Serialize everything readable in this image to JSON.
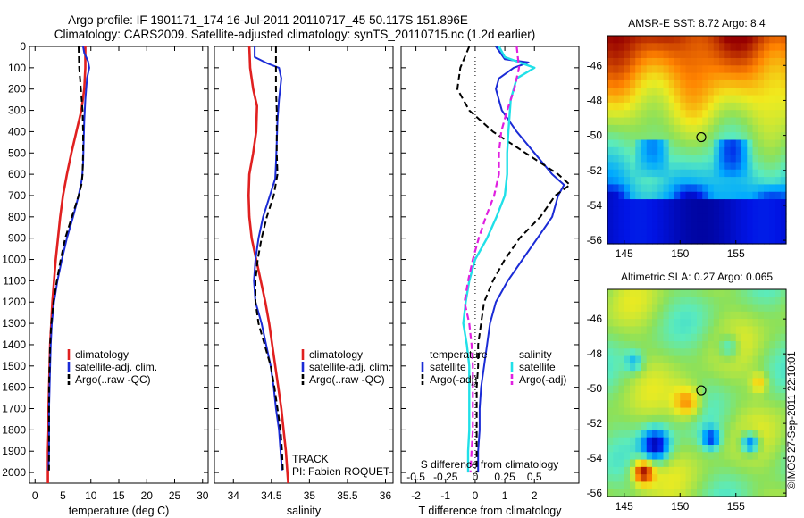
{
  "header": {
    "title_line1": "Argo profile: IF 1901171_174 16-Jul-2011 20110717_45 50.117S 151.896E",
    "title_line2": "Climatology: CARS2009. Satellite-adjusted climatology: synTS_20110715.nc (1.2d earlier)"
  },
  "colors": {
    "climatology": "#e02020",
    "satellite": "#1a2bd6",
    "argo": "#000000",
    "cyan": "#20e0e8",
    "magenta": "#e020e0"
  },
  "chart_data": [
    {
      "id": "temperature",
      "type": "line",
      "xlabel": "temperature (deg C)",
      "ylabel": "",
      "xlim": [
        -1,
        31
      ],
      "ylim": [
        0,
        2050
      ],
      "y_reversed": true,
      "xticks": [
        0,
        5,
        10,
        15,
        20,
        25,
        30
      ],
      "yticks": [
        0,
        100,
        200,
        300,
        400,
        500,
        600,
        700,
        800,
        900,
        1000,
        1100,
        1200,
        1300,
        1400,
        1500,
        1600,
        1700,
        1800,
        1900,
        2000
      ],
      "legend": [
        "climatology",
        "satellite-adj. clim.",
        "Argo(..raw -QC)"
      ],
      "series": [
        {
          "name": "climatology",
          "style": "climatology",
          "points": [
            [
              9,
              0
            ],
            [
              9,
              100
            ],
            [
              8.8,
              200
            ],
            [
              8.3,
              300
            ],
            [
              7.4,
              400
            ],
            [
              6.5,
              500
            ],
            [
              5.7,
              600
            ],
            [
              5.0,
              700
            ],
            [
              4.5,
              800
            ],
            [
              4.1,
              900
            ],
            [
              3.7,
              1000
            ],
            [
              3.4,
              1100
            ],
            [
              3.1,
              1200
            ],
            [
              2.9,
              1300
            ],
            [
              2.7,
              1400
            ],
            [
              2.6,
              1500
            ],
            [
              2.5,
              1600
            ],
            [
              2.4,
              1700
            ],
            [
              2.4,
              1800
            ],
            [
              2.3,
              1900
            ],
            [
              2.3,
              2000
            ],
            [
              2.3,
              2050
            ]
          ]
        },
        {
          "name": "satellite-adj. clim.",
          "style": "satellite",
          "points": [
            [
              8.6,
              0
            ],
            [
              8.8,
              30
            ],
            [
              9.5,
              70
            ],
            [
              9.7,
              100
            ],
            [
              9.3,
              150
            ],
            [
              9.0,
              250
            ],
            [
              8.8,
              350
            ],
            [
              8.7,
              450
            ],
            [
              8.6,
              550
            ],
            [
              8.4,
              620
            ],
            [
              7.8,
              700
            ],
            [
              6.8,
              800
            ],
            [
              5.7,
              900
            ],
            [
              4.8,
              1000
            ],
            [
              4.0,
              1100
            ],
            [
              3.4,
              1200
            ],
            [
              3.0,
              1300
            ],
            [
              2.8,
              1400
            ],
            [
              2.7,
              1500
            ],
            [
              2.6,
              1600
            ],
            [
              2.5,
              1700
            ],
            [
              2.5,
              1800
            ],
            [
              2.5,
              1900
            ],
            [
              2.4,
              1990
            ]
          ]
        },
        {
          "name": "Argo(..raw -QC)",
          "style": "argo",
          "points": [
            [
              7.8,
              0
            ],
            [
              7.9,
              100
            ],
            [
              8.2,
              200
            ],
            [
              8.5,
              300
            ],
            [
              8.6,
              400
            ],
            [
              8.6,
              500
            ],
            [
              8.5,
              600
            ],
            [
              8.3,
              650
            ],
            [
              7.8,
              700
            ],
            [
              6.6,
              800
            ],
            [
              5.4,
              900
            ],
            [
              4.6,
              1000
            ],
            [
              3.9,
              1100
            ],
            [
              3.3,
              1200
            ],
            [
              2.9,
              1300
            ],
            [
              2.7,
              1400
            ],
            [
              2.6,
              1500
            ],
            [
              2.5,
              1600
            ],
            [
              2.5,
              1700
            ],
            [
              2.5,
              1800
            ],
            [
              2.5,
              1900
            ],
            [
              2.5,
              1990
            ]
          ]
        }
      ]
    },
    {
      "id": "salinity",
      "type": "line",
      "xlabel": "salinity",
      "ylabel": "",
      "xlim": [
        33.75,
        36.1
      ],
      "ylim": [
        0,
        2050
      ],
      "y_reversed": true,
      "xticks": [
        34,
        34.5,
        35,
        35.5,
        36
      ],
      "legend": [
        "climatology",
        "satellite-adj. clim.",
        "Argo(..raw -QC)"
      ],
      "annotations": [
        "TRACK",
        "PI: Fabien ROQUET"
      ],
      "series": [
        {
          "name": "climatology",
          "style": "climatology",
          "points": [
            [
              34.21,
              0
            ],
            [
              34.22,
              100
            ],
            [
              34.26,
              200
            ],
            [
              34.31,
              280
            ],
            [
              34.3,
              400
            ],
            [
              34.26,
              500
            ],
            [
              34.21,
              600
            ],
            [
              34.2,
              700
            ],
            [
              34.21,
              800
            ],
            [
              34.24,
              900
            ],
            [
              34.3,
              1000
            ],
            [
              34.36,
              1100
            ],
            [
              34.42,
              1200
            ],
            [
              34.47,
              1300
            ],
            [
              34.51,
              1400
            ],
            [
              34.55,
              1500
            ],
            [
              34.59,
              1600
            ],
            [
              34.63,
              1700
            ],
            [
              34.66,
              1800
            ],
            [
              34.69,
              1900
            ],
            [
              34.71,
              2000
            ],
            [
              34.72,
              2050
            ]
          ]
        },
        {
          "name": "satellite-adj. clim.",
          "style": "satellite",
          "points": [
            [
              34.28,
              0
            ],
            [
              34.28,
              50
            ],
            [
              34.45,
              80
            ],
            [
              34.6,
              100
            ],
            [
              34.63,
              150
            ],
            [
              34.6,
              250
            ],
            [
              34.58,
              350
            ],
            [
              34.57,
              450
            ],
            [
              34.56,
              550
            ],
            [
              34.55,
              620
            ],
            [
              34.48,
              700
            ],
            [
              34.39,
              800
            ],
            [
              34.33,
              900
            ],
            [
              34.29,
              1000
            ],
            [
              34.27,
              1100
            ],
            [
              34.29,
              1200
            ],
            [
              34.37,
              1300
            ],
            [
              34.43,
              1400
            ],
            [
              34.49,
              1500
            ],
            [
              34.53,
              1600
            ],
            [
              34.56,
              1700
            ],
            [
              34.6,
              1800
            ],
            [
              34.62,
              1900
            ],
            [
              34.64,
              1990
            ]
          ]
        },
        {
          "name": "Argo(..raw -QC)",
          "style": "argo",
          "points": [
            [
              34.56,
              0
            ],
            [
              34.56,
              100
            ],
            [
              34.56,
              200
            ],
            [
              34.57,
              300
            ],
            [
              34.57,
              400
            ],
            [
              34.57,
              500
            ],
            [
              34.58,
              600
            ],
            [
              34.53,
              700
            ],
            [
              34.44,
              800
            ],
            [
              34.37,
              900
            ],
            [
              34.32,
              1000
            ],
            [
              34.29,
              1100
            ],
            [
              34.29,
              1200
            ],
            [
              34.33,
              1300
            ],
            [
              34.41,
              1400
            ],
            [
              34.49,
              1500
            ],
            [
              34.54,
              1600
            ],
            [
              34.58,
              1700
            ],
            [
              34.62,
              1800
            ],
            [
              34.64,
              1900
            ],
            [
              34.65,
              1990
            ]
          ]
        }
      ]
    },
    {
      "id": "difference",
      "type": "line",
      "xlabel": "T difference from climatology",
      "ylabel": "",
      "xlim": [
        -2.5,
        3.5
      ],
      "ylim": [
        0,
        2050
      ],
      "y_reversed": true,
      "xticks": [
        -2,
        -1,
        0,
        1,
        2
      ],
      "x2label": "S difference from climatology",
      "x2ticks": [
        -0.5,
        -0.25,
        0,
        0.25,
        0.5
      ],
      "x2tick_labels": [
        "-0.5",
        "-0.25",
        "0",
        "0.25",
        "0.5"
      ],
      "legend_temperature_title": "temperature",
      "legend_salinity_title": "salinity",
      "legend": [
        "satellite",
        "Argo(-adj)",
        "satellite",
        "Argo(-adj)"
      ],
      "series": [
        {
          "name": "satellite",
          "group": "temperature",
          "style": "satellite",
          "points": [
            [
              0.7,
              0
            ],
            [
              1.0,
              60
            ],
            [
              1.8,
              75
            ],
            [
              1.3,
              100
            ],
            [
              0.8,
              150
            ],
            [
              0.7,
              200
            ],
            [
              0.9,
              300
            ],
            [
              1.4,
              400
            ],
            [
              2.0,
              500
            ],
            [
              2.6,
              600
            ],
            [
              3.0,
              650
            ],
            [
              2.8,
              700
            ],
            [
              2.6,
              800
            ],
            [
              2.1,
              900
            ],
            [
              1.6,
              1000
            ],
            [
              1.1,
              1100
            ],
            [
              0.7,
              1200
            ],
            [
              0.5,
              1300
            ],
            [
              0.4,
              1400
            ],
            [
              0.3,
              1500
            ],
            [
              0.2,
              1600
            ],
            [
              0.15,
              1700
            ],
            [
              0.15,
              1800
            ],
            [
              0.1,
              1900
            ],
            [
              0.1,
              2000
            ]
          ]
        },
        {
          "name": "Argo(-adj)",
          "group": "temperature",
          "style": "argo",
          "points": [
            [
              -0.2,
              0
            ],
            [
              -0.5,
              100
            ],
            [
              -0.6,
              200
            ],
            [
              -0.2,
              300
            ],
            [
              0.6,
              400
            ],
            [
              1.7,
              500
            ],
            [
              2.8,
              600
            ],
            [
              3.2,
              650
            ],
            [
              2.7,
              700
            ],
            [
              2.2,
              800
            ],
            [
              1.5,
              900
            ],
            [
              1.0,
              1000
            ],
            [
              0.6,
              1100
            ],
            [
              0.3,
              1200
            ],
            [
              0.2,
              1300
            ],
            [
              0.1,
              1400
            ],
            [
              0.1,
              1500
            ],
            [
              0.05,
              1600
            ],
            [
              0.05,
              1700
            ],
            [
              0.05,
              1800
            ],
            [
              0.05,
              1900
            ],
            [
              0.05,
              2000
            ]
          ]
        },
        {
          "name": "satellite",
          "group": "salinity",
          "style": "cyan",
          "points": [
            [
              0.2,
              0
            ],
            [
              0.25,
              50
            ],
            [
              0.5,
              100
            ],
            [
              0.35,
              150
            ],
            [
              0.3,
              250
            ],
            [
              0.28,
              400
            ],
            [
              0.27,
              500
            ],
            [
              0.27,
              600
            ],
            [
              0.25,
              700
            ],
            [
              0.18,
              800
            ],
            [
              0.1,
              900
            ],
            [
              0.0,
              1000
            ],
            [
              -0.05,
              1100
            ],
            [
              -0.08,
              1200
            ],
            [
              -0.1,
              1300
            ],
            [
              -0.07,
              1400
            ],
            [
              -0.05,
              1500
            ],
            [
              -0.05,
              1600
            ],
            [
              -0.05,
              1700
            ],
            [
              -0.05,
              1800
            ],
            [
              -0.06,
              1900
            ],
            [
              -0.06,
              2000
            ]
          ]
        },
        {
          "name": "Argo(-adj)",
          "group": "salinity",
          "style": "magenta",
          "points": [
            [
              0.35,
              0
            ],
            [
              0.37,
              100
            ],
            [
              0.33,
              200
            ],
            [
              0.27,
              300
            ],
            [
              0.22,
              400
            ],
            [
              0.2,
              500
            ],
            [
              0.2,
              600
            ],
            [
              0.16,
              700
            ],
            [
              0.09,
              800
            ],
            [
              0.03,
              900
            ],
            [
              -0.02,
              1000
            ],
            [
              -0.06,
              1100
            ],
            [
              -0.09,
              1200
            ],
            [
              -0.05,
              1300
            ],
            [
              -0.03,
              1400
            ],
            [
              -0.02,
              1500
            ],
            [
              -0.02,
              1600
            ],
            [
              -0.02,
              1700
            ],
            [
              -0.02,
              1800
            ],
            [
              -0.03,
              1900
            ],
            [
              -0.04,
              2000
            ]
          ]
        }
      ]
    },
    {
      "id": "sst_map",
      "type": "heatmap",
      "title": "AMSR-E SST: 8.72 Argo: 8.4",
      "xlim": [
        143.5,
        159.5
      ],
      "ylim": [
        -56.2,
        -44.3
      ],
      "xticks": [
        145,
        150,
        155
      ],
      "yticks": [
        -46,
        -48,
        -50,
        -52,
        -54,
        -56
      ],
      "marker": [
        151.9,
        -50.1
      ]
    },
    {
      "id": "sla_map",
      "type": "heatmap",
      "title": "Altimetric SLA: 0.27 Argo: 0.065",
      "xlim": [
        143.5,
        159.5
      ],
      "ylim": [
        -56.2,
        -44.3
      ],
      "xticks": [
        145,
        150,
        155
      ],
      "yticks": [
        -46,
        -48,
        -50,
        -52,
        -54,
        -56
      ],
      "marker": [
        151.9,
        -50.1
      ]
    }
  ],
  "footer": {
    "credit": "©IMOS 27-Sep-2011 22:10:01"
  }
}
